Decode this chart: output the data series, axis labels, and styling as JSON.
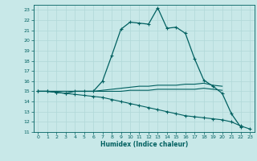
{
  "title": "",
  "xlabel": "Humidex (Indice chaleur)",
  "xlim": [
    -0.5,
    23.5
  ],
  "ylim": [
    11,
    23.5
  ],
  "yticks": [
    11,
    12,
    13,
    14,
    15,
    16,
    17,
    18,
    19,
    20,
    21,
    22,
    23
  ],
  "xticks": [
    0,
    1,
    2,
    3,
    4,
    5,
    6,
    7,
    8,
    9,
    10,
    11,
    12,
    13,
    14,
    15,
    16,
    17,
    18,
    19,
    20,
    21,
    22,
    23
  ],
  "bg_color": "#c8e8e8",
  "line_color": "#006060",
  "grid_color": "#b0d8d8",
  "line1_x": [
    0,
    1,
    2,
    3,
    4,
    5,
    6,
    7,
    8,
    9,
    10,
    11,
    12,
    13,
    14,
    15,
    16,
    17,
    18,
    19,
    20,
    21,
    22
  ],
  "line1_y": [
    15.0,
    15.0,
    14.9,
    14.8,
    15.0,
    15.0,
    15.0,
    16.0,
    18.5,
    21.1,
    21.8,
    21.7,
    21.6,
    23.2,
    21.2,
    21.3,
    20.7,
    18.2,
    16.1,
    15.5,
    14.8,
    12.8,
    11.5
  ],
  "line2_x": [
    0,
    1,
    2,
    3,
    4,
    5,
    6,
    7,
    8,
    9,
    10,
    11,
    12,
    13,
    14,
    15,
    16,
    17,
    18,
    19,
    20
  ],
  "line2_y": [
    15.0,
    15.0,
    15.0,
    15.0,
    15.0,
    15.0,
    15.0,
    15.1,
    15.2,
    15.3,
    15.4,
    15.5,
    15.5,
    15.6,
    15.6,
    15.6,
    15.7,
    15.7,
    15.8,
    15.6,
    15.5
  ],
  "line3_x": [
    0,
    1,
    2,
    3,
    4,
    5,
    6,
    7,
    8,
    9,
    10,
    11,
    12,
    13,
    14,
    15,
    16,
    17,
    18,
    19,
    20
  ],
  "line3_y": [
    15.0,
    15.0,
    15.0,
    15.0,
    15.0,
    15.0,
    15.0,
    15.0,
    15.0,
    15.0,
    15.1,
    15.1,
    15.1,
    15.2,
    15.2,
    15.2,
    15.2,
    15.2,
    15.3,
    15.2,
    15.1
  ],
  "line4_x": [
    0,
    1,
    2,
    3,
    4,
    5,
    6,
    7,
    8,
    9,
    10,
    11,
    12,
    13,
    14,
    15,
    16,
    17,
    18,
    19,
    20,
    21,
    22,
    23
  ],
  "line4_y": [
    15.0,
    15.0,
    14.9,
    14.8,
    14.7,
    14.6,
    14.5,
    14.4,
    14.2,
    14.0,
    13.8,
    13.6,
    13.4,
    13.2,
    13.0,
    12.8,
    12.6,
    12.5,
    12.4,
    12.3,
    12.2,
    12.0,
    11.6,
    11.3
  ]
}
